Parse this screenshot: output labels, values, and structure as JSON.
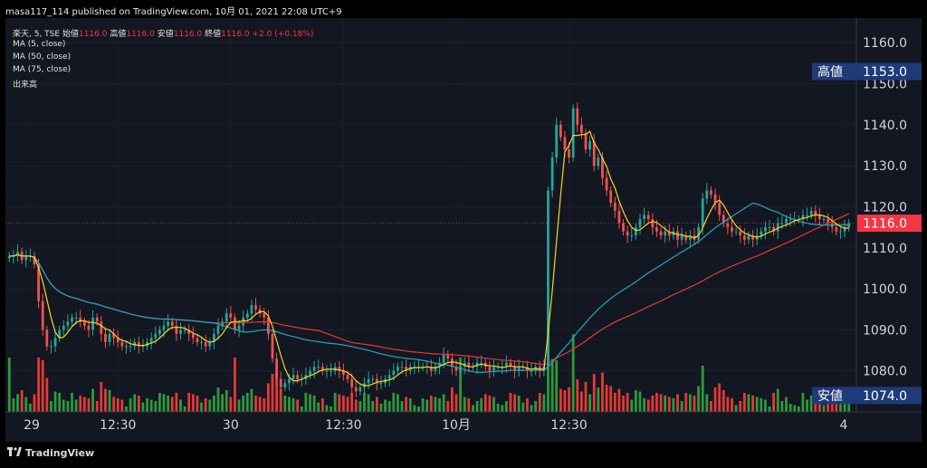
{
  "header": {
    "published": "masa117_114 published on TradingView.com, 10月 01, 2021 22:08 UTC+9"
  },
  "legend": {
    "symbol": "楽天, 5, TSE",
    "open_label": "始値",
    "open_value": "1116.0",
    "high_label": "高値",
    "high_value": "1116.0",
    "low_label": "安値",
    "low_value": "1116.0",
    "close_label": "終値",
    "close_value": "1116.0",
    "change": "+2.0 (+0.18%)",
    "indicators": [
      "MA (5, close)",
      "MA (50, close)",
      "MA (75, close)",
      "出来高"
    ]
  },
  "footer": {
    "brand": "TradingView",
    "logo": "tradingview-logo-icon"
  },
  "colors": {
    "background": "#131722",
    "up": "#26a69a",
    "down": "#ef5350",
    "ma5": "#f7d51f",
    "ma50": "#26a5c4",
    "ma75": "#e53935",
    "vol_up": "#2e9a3d",
    "vol_down": "#e53935",
    "last_price": "#f23645",
    "high_low_tag": "#1e3a78"
  },
  "chart_data": {
    "type": "candlestick",
    "title": "楽天, 5, TSE",
    "y_axis": {
      "position": "right",
      "ticks": [
        "1160.0",
        "1150.0",
        "1140.0",
        "1130.0",
        "1120.0",
        "1110.0",
        "1100.0",
        "1090.0",
        "1080.0"
      ],
      "ylim": [
        1070,
        1166
      ]
    },
    "x_axis": {
      "ticks": [
        "29",
        "12:30",
        "30",
        "12:30",
        "10月",
        "12:30",
        "4"
      ]
    },
    "markers": {
      "high": {
        "label": "高値",
        "value": "1153.0"
      },
      "low": {
        "label": "安値",
        "value": "1074.0"
      },
      "last": {
        "value": "1116.0"
      }
    },
    "sessions": [
      {
        "name": "9/29",
        "start": 1108,
        "end": 1081
      },
      {
        "name": "9/30",
        "start": 1094,
        "end": 1080
      },
      {
        "name": "10/1",
        "start": 1126,
        "end": 1116
      }
    ],
    "closes": [
      1108,
      1108,
      1109,
      1107,
      1108,
      1108,
      1106,
      1097,
      1090,
      1086,
      1086,
      1088,
      1090,
      1091,
      1092,
      1093,
      1093,
      1092,
      1091,
      1090,
      1093,
      1092,
      1089,
      1087,
      1089,
      1088,
      1087,
      1086,
      1086,
      1086,
      1087,
      1086,
      1086,
      1087,
      1088,
      1089,
      1090,
      1091,
      1092,
      1091,
      1089,
      1090,
      1090,
      1089,
      1088,
      1087,
      1087,
      1086,
      1087,
      1089,
      1091,
      1092,
      1094,
      1093,
      1090,
      1091,
      1093,
      1094,
      1096,
      1095,
      1094,
      1093,
      1089,
      1083,
      1078,
      1076,
      1077,
      1078,
      1079,
      1078,
      1078,
      1079,
      1080,
      1081,
      1081,
      1080,
      1080,
      1080,
      1081,
      1080,
      1079,
      1078,
      1076,
      1075,
      1076,
      1077,
      1078,
      1078,
      1077,
      1077,
      1078,
      1079,
      1080,
      1081,
      1081,
      1080,
      1081,
      1081,
      1081,
      1081,
      1081,
      1080,
      1081,
      1082,
      1084,
      1083,
      1081,
      1080,
      1081,
      1082,
      1081,
      1081,
      1082,
      1082,
      1081,
      1080,
      1081,
      1081,
      1081,
      1082,
      1081,
      1080,
      1081,
      1081,
      1080,
      1080,
      1081,
      1080,
      1081,
      1124,
      1132,
      1140,
      1137,
      1134,
      1132,
      1144,
      1140,
      1138,
      1134,
      1136,
      1130,
      1132,
      1127,
      1124,
      1121,
      1119,
      1116,
      1114,
      1113,
      1113,
      1115,
      1117,
      1118,
      1117,
      1115,
      1114,
      1113,
      1114,
      1113,
      1114,
      1112,
      1113,
      1112,
      1113,
      1112,
      1115,
      1122,
      1124,
      1123,
      1121,
      1118,
      1116,
      1115,
      1114,
      1114,
      1113,
      1112,
      1113,
      1112,
      1113,
      1114,
      1115,
      1115,
      1114,
      1116,
      1116,
      1117,
      1117,
      1117,
      1117,
      1118,
      1118,
      1119,
      1118,
      1117,
      1117,
      1116,
      1115,
      1114,
      1114,
      1115,
      1116
    ]
  }
}
